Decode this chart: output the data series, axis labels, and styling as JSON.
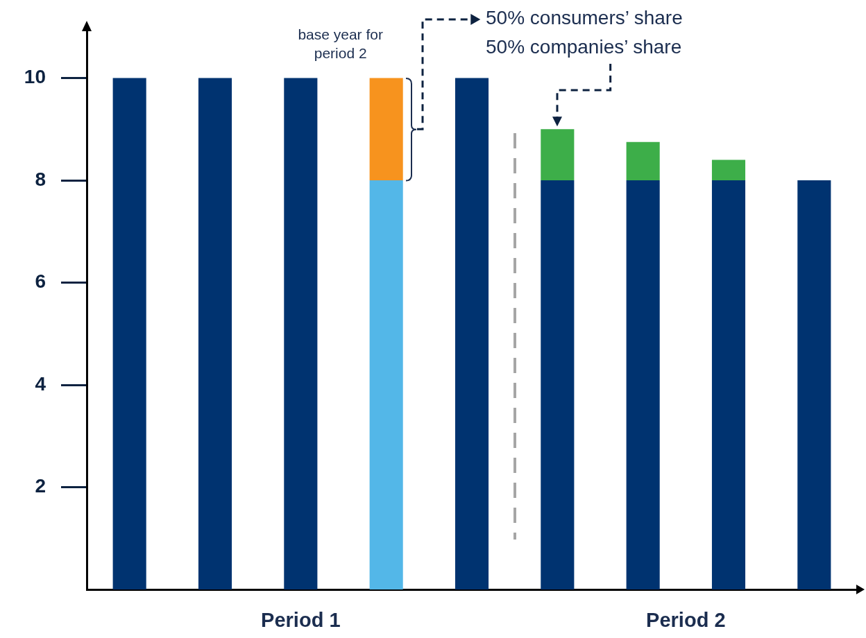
{
  "chart_data": {
    "type": "bar",
    "categories": [
      null,
      null,
      null,
      null,
      null,
      null,
      null,
      null,
      null
    ],
    "series": [
      {
        "color": "#003370",
        "values": [
          10,
          10,
          10,
          null,
          10,
          8,
          8,
          8,
          8
        ]
      },
      {
        "color": "#3dae49",
        "values": [
          null,
          null,
          null,
          null,
          null,
          1,
          0.75,
          0.4,
          null
        ]
      },
      {
        "color": "#53b7e8",
        "values": [
          null,
          null,
          null,
          8,
          null,
          null,
          null,
          null,
          null
        ]
      },
      {
        "color": "#f7931e",
        "values": [
          null,
          null,
          null,
          2,
          null,
          null,
          null,
          null,
          null
        ]
      }
    ],
    "stacked": true,
    "ylim": [
      0,
      11
    ],
    "yticks": [
      2,
      4,
      6,
      8,
      10
    ],
    "grid": false,
    "legend": false,
    "annotations": [
      "base year for period 2",
      "50% consumers’ share",
      "50% companies’ share",
      "Period 1",
      "Period 2"
    ]
  }
}
